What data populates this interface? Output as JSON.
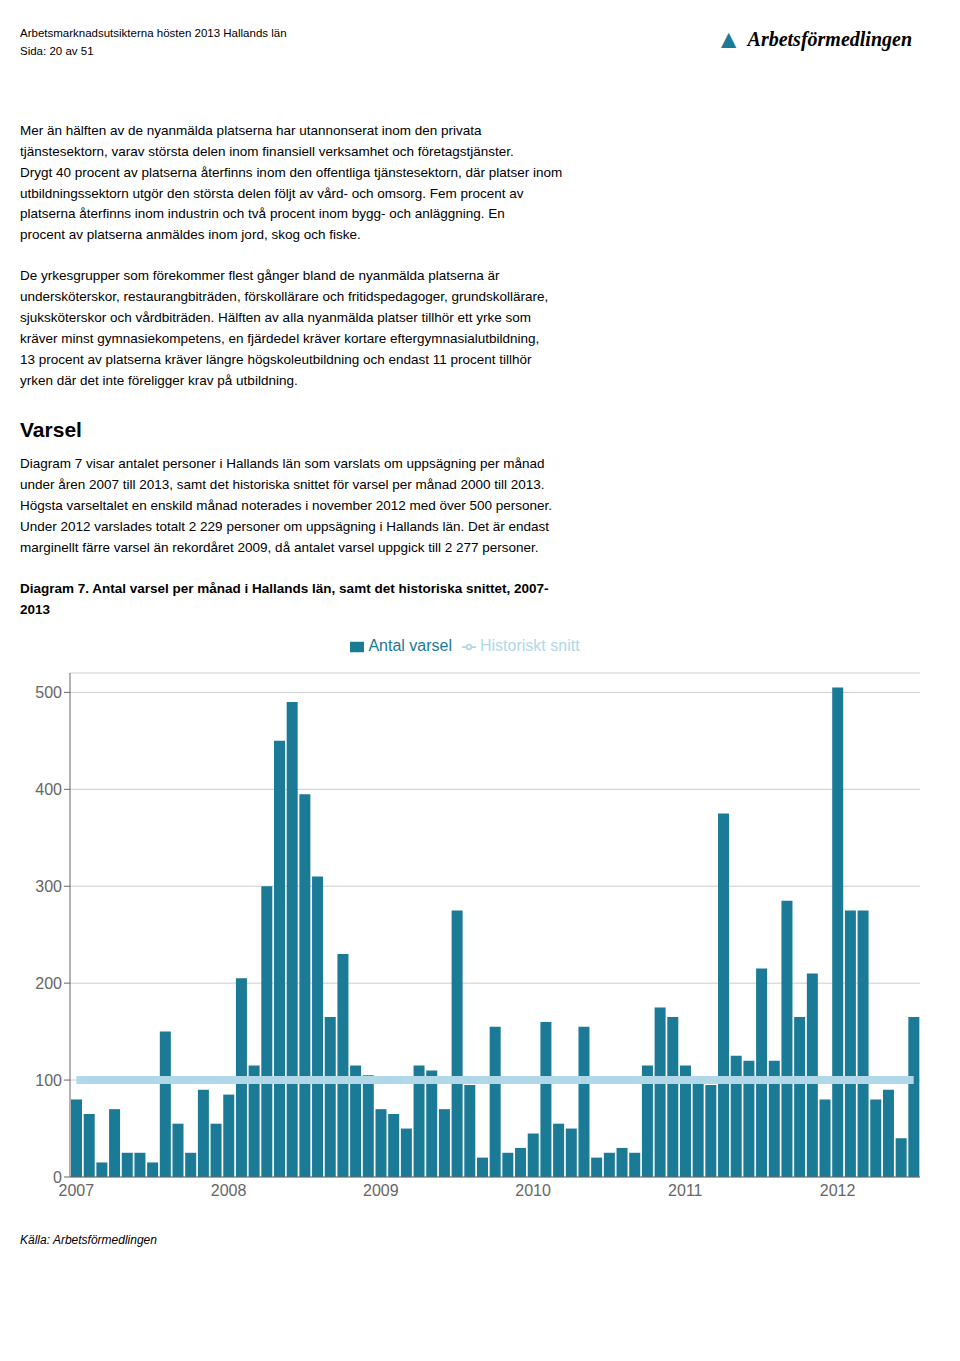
{
  "chart_data": {
    "type": "bar",
    "title": "Diagram 7. Antal varsel per månad i Hallands län, samt det historiska snittet, 2007-\n2013",
    "annotations": [
      "Arbetsmarknadsutsikterna hösten 2013 Hallands län",
      "Sida: 20 av 51",
      "▲",
      "Arbetsförmedlingen",
      "Mer än hälften av de nyanmälda platserna har utannonserat inom den privata\ntjänstesektorn, varav största delen inom finansiell verksamhet och företagstjänster.\nDrygt 40 procent av platserna återfinns inom den offentliga tjänstesektorn, där platser inom\nutbildningssektorn utgör den största delen följt av vård- och omsorg. Fem procent av\nplatserna återfinns inom industrin och två procent inom bygg- och anläggning. En\nprocent av platserna anmäldes inom jord, skog och fiske.",
      "De yrkesgrupper som förekommer flest gånger bland de nyanmälda platserna är\nundersköterskor, restaurangbiträden, förskollärare och fritidspedagoger, grundskollärare,\nsjuksköterskor och vårdbiträden. Hälften av alla nyanmälda platser tillhör ett yrke som\nkräver minst gymnasiekompetens, en fjärdedel kräver kortare eftergymnasialutbildning,\n13 procent av platserna kräver längre högskoleutbildning och endast 11 procent tillhör\nyrken där det inte föreligger krav på utbildning.",
      "Varsel",
      "Diagram 7 visar antalet personer i Hallands län som varslats om uppsägning per månad\nunder åren 2007 till 2013, samt det historiska snittet för varsel per månad 2000 till 2013.\nHögsta varseltalet en enskild månad noterades i november 2012 med över 500 personer.\nUnder 2012 varslades totalt 2 229 personer om uppsägning i Hallands län. Det är endast\nmarginellt färre varsel än rekordåret 2009, då antalet varsel uppgick till 2 277 personer.",
      "Källa: Arbetsförmedlingen"
    ],
    "categories": [
      "2007",
      null,
      null,
      null,
      null,
      null,
      null,
      null,
      null,
      null,
      null,
      null,
      "2008",
      null,
      null,
      null,
      null,
      null,
      null,
      null,
      null,
      null,
      null,
      null,
      "2009",
      null,
      null,
      null,
      null,
      null,
      null,
      null,
      null,
      null,
      null,
      null,
      "2010",
      null,
      null,
      null,
      null,
      null,
      null,
      null,
      null,
      null,
      null,
      null,
      "2011",
      null,
      null,
      null,
      null,
      null,
      null,
      null,
      null,
      null,
      null,
      null,
      "2012",
      null,
      null,
      null,
      null,
      null,
      null
    ],
    "series": [
      {
        "name": "Antal varsel",
        "type": "bar",
        "color": "#1b7a96",
        "values": [
          80,
          65,
          15,
          70,
          25,
          25,
          15,
          150,
          55,
          25,
          90,
          55,
          85,
          205,
          115,
          300,
          450,
          490,
          395,
          310,
          165,
          230,
          115,
          105,
          70,
          65,
          50,
          115,
          110,
          70,
          275,
          95,
          20,
          155,
          25,
          30,
          45,
          160,
          55,
          50,
          155,
          20,
          25,
          30,
          25,
          115,
          175,
          165,
          115,
          100,
          95,
          375,
          125,
          120,
          215,
          120,
          285,
          165,
          210,
          80,
          505,
          275,
          275,
          80,
          90,
          40,
          165
        ]
      },
      {
        "name": "Historiskt snitt",
        "type": "line",
        "color": "#b0d8e8",
        "values": [
          100,
          100,
          100,
          100,
          100,
          100,
          100,
          100,
          100,
          100,
          100,
          100,
          100,
          100,
          100,
          100,
          100,
          100,
          100,
          100,
          100,
          100,
          100,
          100,
          100,
          100,
          100,
          100,
          100,
          100,
          100,
          100,
          100,
          100,
          100,
          100,
          100,
          100,
          100,
          100,
          100,
          100,
          100,
          100,
          100,
          100,
          100,
          100,
          100,
          100,
          100,
          100,
          100,
          100,
          100,
          100,
          100,
          100,
          100,
          100,
          100,
          100,
          100,
          100,
          100,
          100,
          100
        ]
      }
    ],
    "ylim": [
      0,
      520
    ],
    "yticks": [
      0,
      100,
      200,
      300,
      400,
      500
    ],
    "grid": true,
    "legend": "top"
  }
}
